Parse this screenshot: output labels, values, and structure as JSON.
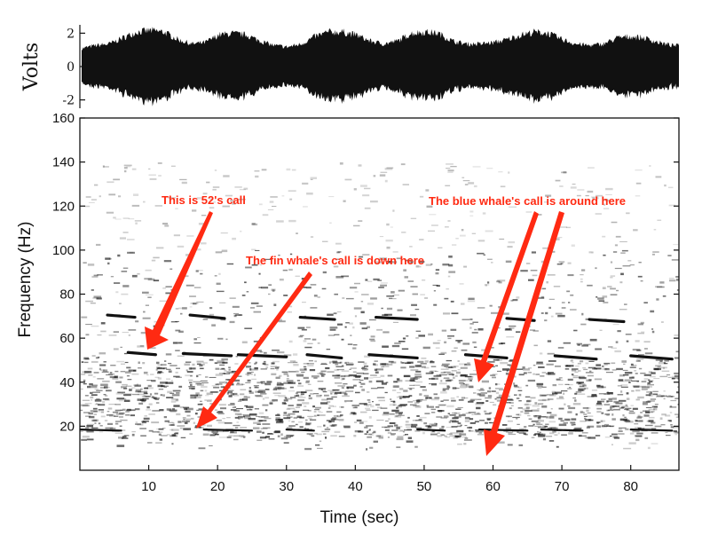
{
  "chart_data": [
    {
      "type": "line",
      "panel": "waveform",
      "ylabel": "Volts",
      "ylim": [
        -2.5,
        2.5
      ],
      "yticks": [
        2,
        0,
        -2
      ],
      "xlim": [
        0,
        87
      ],
      "envelope": {
        "x": [
          0,
          2,
          4,
          6,
          8,
          10,
          12,
          14,
          16,
          18,
          20,
          22,
          24,
          26,
          28,
          30,
          32,
          34,
          36,
          38,
          40,
          42,
          44,
          46,
          48,
          50,
          52,
          54,
          56,
          58,
          60,
          62,
          64,
          66,
          68,
          70,
          72,
          74,
          76,
          78,
          80,
          82,
          84,
          86
        ],
        "amplitude": [
          1.2,
          1.4,
          1.5,
          1.9,
          2.3,
          2.4,
          2.3,
          1.8,
          1.5,
          1.6,
          2.1,
          2.2,
          2.1,
          1.7,
          1.4,
          1.3,
          1.5,
          2.0,
          2.3,
          2.3,
          2.1,
          1.7,
          1.5,
          1.7,
          2.2,
          2.3,
          2.2,
          1.7,
          1.5,
          1.5,
          1.6,
          1.8,
          2.1,
          2.3,
          2.2,
          1.8,
          1.5,
          1.4,
          1.5,
          1.9,
          2.0,
          1.9,
          1.6,
          1.4
        ]
      }
    },
    {
      "type": "heatmap",
      "panel": "spectrogram",
      "xlabel": "Time (sec)",
      "ylabel": "Frequency (Hz)",
      "xlim": [
        0,
        87
      ],
      "ylim": [
        0,
        160
      ],
      "xticks": [
        10,
        20,
        30,
        40,
        50,
        60,
        70,
        80
      ],
      "yticks": [
        20,
        40,
        60,
        80,
        100,
        120,
        140,
        160
      ],
      "calls": [
        {
          "band": "52 Hz",
          "segments": [
            [
              7,
              11,
              53.5,
              52.5
            ],
            [
              15,
              22,
              53,
              52
            ],
            [
              23,
              30,
              52.5,
              51.5
            ],
            [
              33,
              38,
              52.5,
              51
            ],
            [
              42,
              49,
              52.5,
              51
            ],
            [
              56,
              62,
              52.5,
              51
            ],
            [
              69,
              75,
              52,
              50.5
            ],
            [
              80,
              86,
              52,
              50.5
            ]
          ]
        },
        {
          "band": "70 Hz",
          "segments": [
            [
              4,
              8,
              70.5,
              69.5
            ],
            [
              16,
              21,
              70.5,
              69
            ],
            [
              32,
              37,
              69.5,
              68.5
            ],
            [
              43,
              49,
              69.5,
              68.5
            ],
            [
              62,
              66,
              69,
              68
            ],
            [
              74,
              79,
              68.5,
              67.5
            ]
          ]
        },
        {
          "band": "18 Hz",
          "segments": [
            [
              0,
              6,
              18.5,
              18
            ],
            [
              18,
              25,
              18.5,
              18
            ],
            [
              30,
              34,
              18.5,
              18
            ],
            [
              49,
              53,
              18.5,
              18
            ],
            [
              58,
              65,
              18.5,
              18
            ],
            [
              67,
              73,
              18.5,
              18
            ],
            [
              80,
              86,
              18.5,
              18
            ]
          ]
        }
      ],
      "noise_band": {
        "low": 10,
        "high": 100,
        "densest": [
          15,
          50
        ]
      }
    }
  ],
  "annotations": [
    {
      "text": "This is 52's call",
      "color": "#ff2a12"
    },
    {
      "text": "The fin whale's call is down here",
      "color": "#ff2a12"
    },
    {
      "text": "The blue whale's call is around here",
      "color": "#ff2a12"
    }
  ],
  "colors": {
    "ink": "#111111",
    "arrow": "#ff2a12",
    "background": "#ffffff"
  }
}
